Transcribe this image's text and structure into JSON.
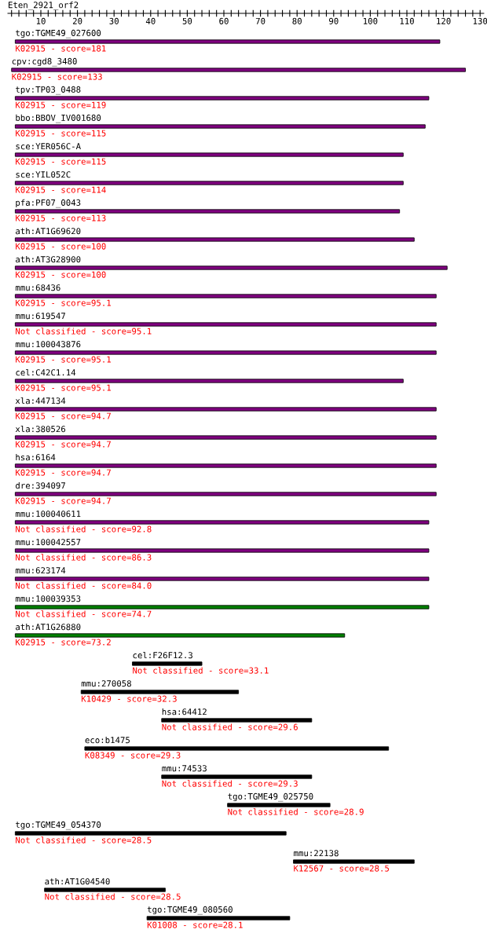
{
  "chart_data": {
    "type": "bar",
    "orientation": "horizontal",
    "title": "Eten_2921_orf2",
    "categories": [
      "tgo:TGME49_027600",
      "cpv:cgd8_3480",
      "tpv:TP03_0488",
      "bbo:BBOV_IV001680",
      "sce:YER056C-A",
      "sce:YIL052C",
      "pfa:PF07_0043",
      "ath:AT1G69620",
      "ath:AT3G28900",
      "mmu:68436",
      "mmu:619547",
      "mmu:100043876",
      "cel:C42C1.14",
      "xla:447134",
      "xla:380526",
      "hsa:6164",
      "dre:394097",
      "mmu:100040611",
      "mmu:100042557",
      "mmu:623174",
      "mmu:100039353",
      "ath:AT1G26880",
      "cel:F26F12.3",
      "mmu:270058",
      "hsa:64412",
      "eco:b1475",
      "mmu:74533",
      "tgo:TGME49_025750",
      "tgo:TGME49_054370",
      "mmu:22138",
      "ath:AT1G04540",
      "tgo:TGME49_080560"
    ],
    "base": [
      3,
      2,
      3,
      3,
      3,
      3,
      3,
      3,
      3,
      3,
      3,
      3,
      3,
      3,
      3,
      3,
      3,
      3,
      3,
      3,
      3,
      3,
      35,
      21,
      43,
      22,
      43,
      61,
      3,
      79,
      11,
      39
    ],
    "values": [
      116,
      124,
      113,
      112,
      106,
      106,
      105,
      109,
      118,
      115,
      115,
      115,
      106,
      115,
      115,
      115,
      115,
      113,
      113,
      113,
      113,
      90,
      19,
      43,
      41,
      83,
      41,
      28,
      74,
      33,
      33,
      39
    ],
    "colors": [
      "#800080",
      "#800080",
      "#800080",
      "#800080",
      "#800080",
      "#800080",
      "#800080",
      "#800080",
      "#800080",
      "#800080",
      "#800080",
      "#800080",
      "#800080",
      "#800080",
      "#800080",
      "#800080",
      "#800080",
      "#800080",
      "#800080",
      "#800080",
      "#008000",
      "#008000",
      "#000000",
      "#000000",
      "#000000",
      "#000000",
      "#000000",
      "#000000",
      "#000000",
      "#000000",
      "#000000",
      "#000000"
    ],
    "annotations": [
      "K02915 - score=181",
      "K02915 - score=133",
      "K02915 - score=119",
      "K02915 - score=115",
      "K02915 - score=115",
      "K02915 - score=114",
      "K02915 - score=113",
      "K02915 - score=100",
      "K02915 - score=100",
      "K02915 - score=95.1",
      "Not classified - score=95.1",
      "K02915 - score=95.1",
      "K02915 - score=95.1",
      "K02915 - score=94.7",
      "K02915 - score=94.7",
      "K02915 - score=94.7",
      "K02915 - score=94.7",
      "Not classified - score=92.8",
      "Not classified - score=86.3",
      "Not classified - score=84.0",
      "Not classified - score=74.7",
      "K02915 - score=73.2",
      "Not classified - score=33.1",
      "K10429 - score=32.3",
      "Not classified - score=29.6",
      "K08349 - score=29.3",
      "Not classified - score=29.3",
      "Not classified - score=28.9",
      "Not classified - score=28.5",
      "K12567 - score=28.5",
      "Not classified - score=28.5",
      "K01008 - score=28.1"
    ],
    "xlim": [
      1,
      131
    ],
    "xticks": [
      {
        "value": 2,
        "label": null
      },
      {
        "value": 4,
        "label": null
      },
      {
        "value": 6,
        "label": null
      },
      {
        "value": 8,
        "label": null
      },
      10,
      {
        "value": 12,
        "label": null
      },
      {
        "value": 14,
        "label": null
      },
      {
        "value": 16,
        "label": null
      },
      {
        "value": 18,
        "label": null
      },
      20,
      {
        "value": 22,
        "label": null
      },
      {
        "value": 24,
        "label": null
      },
      {
        "value": 26,
        "label": null
      },
      {
        "value": 28,
        "label": null
      },
      30,
      {
        "value": 32,
        "label": null
      },
      {
        "value": 34,
        "label": null
      },
      {
        "value": 36,
        "label": null
      },
      {
        "value": 38,
        "label": null
      },
      40,
      {
        "value": 42,
        "label": null
      },
      {
        "value": 44,
        "label": null
      },
      {
        "value": 46,
        "label": null
      },
      {
        "value": 48,
        "label": null
      },
      50,
      {
        "value": 52,
        "label": null
      },
      {
        "value": 54,
        "label": null
      },
      {
        "value": 56,
        "label": null
      },
      {
        "value": 58,
        "label": null
      },
      60,
      {
        "value": 62,
        "label": null
      },
      {
        "value": 64,
        "label": null
      },
      {
        "value": 66,
        "label": null
      },
      {
        "value": 68,
        "label": null
      },
      70,
      {
        "value": 72,
        "label": null
      },
      {
        "value": 74,
        "label": null
      },
      {
        "value": 76,
        "label": null
      },
      {
        "value": 78,
        "label": null
      },
      80,
      {
        "value": 82,
        "label": null
      },
      {
        "value": 84,
        "label": null
      },
      {
        "value": 86,
        "label": null
      },
      {
        "value": 88,
        "label": null
      },
      90,
      {
        "value": 92,
        "label": null
      },
      {
        "value": 94,
        "label": null
      },
      {
        "value": 96,
        "label": null
      },
      {
        "value": 98,
        "label": null
      },
      100,
      {
        "value": 102,
        "label": null
      },
      {
        "value": 104,
        "label": null
      },
      {
        "value": 106,
        "label": null
      },
      {
        "value": 108,
        "label": null
      },
      110,
      {
        "value": 112,
        "label": null
      },
      {
        "value": 114,
        "label": null
      },
      {
        "value": 116,
        "label": null
      },
      {
        "value": 118,
        "label": null
      },
      120,
      {
        "value": 122,
        "label": null
      },
      {
        "value": 124,
        "label": null
      },
      {
        "value": 126,
        "label": null
      },
      {
        "value": 128,
        "label": null
      },
      130
    ]
  }
}
